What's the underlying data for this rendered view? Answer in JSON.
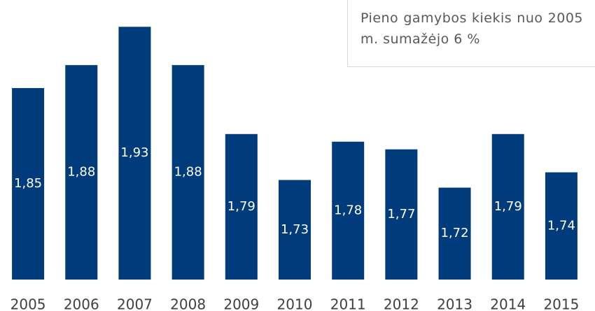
{
  "chart_data": {
    "type": "bar",
    "annotation": "Pieno gamybos kiekis nuo 2005 m. sumažėjo 6 %",
    "categories": [
      "2005",
      "2006",
      "2007",
      "2008",
      "2009",
      "2010",
      "2011",
      "2012",
      "2013",
      "2014",
      "2015"
    ],
    "values": [
      1.85,
      1.88,
      1.93,
      1.88,
      1.79,
      1.73,
      1.78,
      1.77,
      1.72,
      1.79,
      1.74
    ],
    "value_labels": [
      "1,85",
      "1,88",
      "1,93",
      "1,88",
      "1,79",
      "1,73",
      "1,78",
      "1,77",
      "1,72",
      "1,79",
      "1,74"
    ],
    "color": "#003b7b",
    "ylim": [
      1.6,
      1.965
    ]
  }
}
